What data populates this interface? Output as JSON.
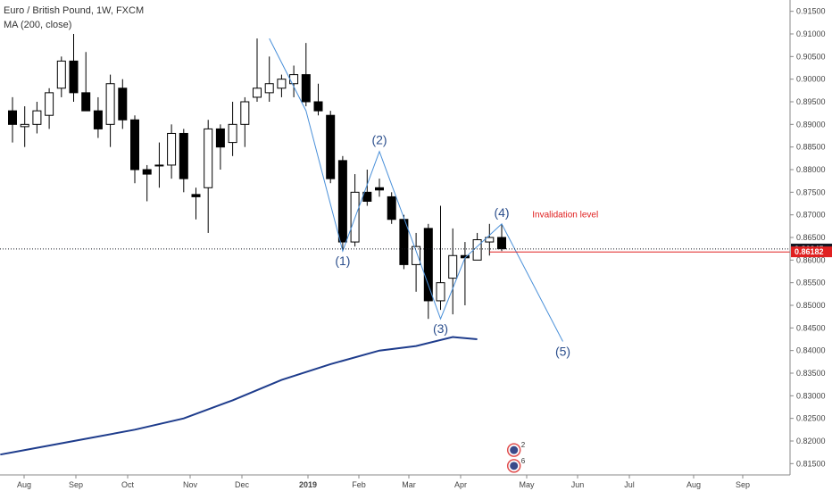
{
  "legend": {
    "title": "Euro / British Pound, 1W, FXCM",
    "indicator": "MA (200, close)"
  },
  "annotation": {
    "text": "Invalidation level"
  },
  "price_tags": [
    {
      "label": "0.86245",
      "value": 0.86245,
      "color": "#131722"
    },
    {
      "label": "0.86182",
      "value": 0.86182,
      "color": "#e02020"
    }
  ],
  "chart_data": {
    "type": "candlestick",
    "y_ticks": [
      "0.91500",
      "0.91000",
      "0.90500",
      "0.90000",
      "0.89500",
      "0.89000",
      "0.88500",
      "0.88000",
      "0.87500",
      "0.87000",
      "0.86500",
      "0.86000",
      "0.85500",
      "0.85000",
      "0.84500",
      "0.84000",
      "0.83500",
      "0.83000",
      "0.82500",
      "0.82000",
      "0.81500"
    ],
    "ylim": [
      0.8125,
      0.9175
    ],
    "x_ticks": [
      "Aug",
      "Sep",
      "Oct",
      "Nov",
      "Dec",
      "2019",
      "Feb",
      "Mar",
      "Apr",
      "May",
      "Jun",
      "Jul",
      "Aug",
      "Sep"
    ],
    "candles": [
      {
        "o": 0.893,
        "h": 0.896,
        "l": 0.886,
        "c": 0.89
      },
      {
        "o": 0.8895,
        "h": 0.894,
        "l": 0.885,
        "c": 0.89
      },
      {
        "o": 0.89,
        "h": 0.895,
        "l": 0.888,
        "c": 0.893
      },
      {
        "o": 0.892,
        "h": 0.898,
        "l": 0.889,
        "c": 0.897
      },
      {
        "o": 0.898,
        "h": 0.905,
        "l": 0.896,
        "c": 0.904
      },
      {
        "o": 0.904,
        "h": 0.91,
        "l": 0.895,
        "c": 0.897
      },
      {
        "o": 0.897,
        "h": 0.906,
        "l": 0.893,
        "c": 0.893
      },
      {
        "o": 0.893,
        "h": 0.896,
        "l": 0.887,
        "c": 0.889
      },
      {
        "o": 0.89,
        "h": 0.901,
        "l": 0.885,
        "c": 0.899
      },
      {
        "o": 0.898,
        "h": 0.9,
        "l": 0.889,
        "c": 0.891
      },
      {
        "o": 0.891,
        "h": 0.892,
        "l": 0.877,
        "c": 0.88
      },
      {
        "o": 0.88,
        "h": 0.881,
        "l": 0.873,
        "c": 0.879
      },
      {
        "o": 0.881,
        "h": 0.886,
        "l": 0.876,
        "c": 0.881
      },
      {
        "o": 0.881,
        "h": 0.89,
        "l": 0.878,
        "c": 0.888
      },
      {
        "o": 0.888,
        "h": 0.889,
        "l": 0.875,
        "c": 0.878
      },
      {
        "o": 0.8745,
        "h": 0.876,
        "l": 0.869,
        "c": 0.874
      },
      {
        "o": 0.876,
        "h": 0.891,
        "l": 0.866,
        "c": 0.889
      },
      {
        "o": 0.889,
        "h": 0.89,
        "l": 0.88,
        "c": 0.885
      },
      {
        "o": 0.886,
        "h": 0.895,
        "l": 0.883,
        "c": 0.89
      },
      {
        "o": 0.89,
        "h": 0.896,
        "l": 0.885,
        "c": 0.895
      },
      {
        "o": 0.896,
        "h": 0.909,
        "l": 0.895,
        "c": 0.898
      },
      {
        "o": 0.897,
        "h": 0.905,
        "l": 0.895,
        "c": 0.899
      },
      {
        "o": 0.898,
        "h": 0.901,
        "l": 0.896,
        "c": 0.9
      },
      {
        "o": 0.899,
        "h": 0.903,
        "l": 0.896,
        "c": 0.901
      },
      {
        "o": 0.901,
        "h": 0.908,
        "l": 0.894,
        "c": 0.895
      },
      {
        "o": 0.895,
        "h": 0.899,
        "l": 0.892,
        "c": 0.893
      },
      {
        "o": 0.892,
        "h": 0.893,
        "l": 0.877,
        "c": 0.878
      },
      {
        "o": 0.882,
        "h": 0.883,
        "l": 0.862,
        "c": 0.864
      },
      {
        "o": 0.864,
        "h": 0.879,
        "l": 0.863,
        "c": 0.875
      },
      {
        "o": 0.875,
        "h": 0.88,
        "l": 0.872,
        "c": 0.873
      },
      {
        "o": 0.876,
        "h": 0.878,
        "l": 0.874,
        "c": 0.8755
      },
      {
        "o": 0.874,
        "h": 0.875,
        "l": 0.868,
        "c": 0.869
      },
      {
        "o": 0.869,
        "h": 0.87,
        "l": 0.858,
        "c": 0.859
      },
      {
        "o": 0.859,
        "h": 0.866,
        "l": 0.853,
        "c": 0.863
      },
      {
        "o": 0.867,
        "h": 0.868,
        "l": 0.847,
        "c": 0.851
      },
      {
        "o": 0.851,
        "h": 0.872,
        "l": 0.849,
        "c": 0.855
      },
      {
        "o": 0.856,
        "h": 0.867,
        "l": 0.848,
        "c": 0.861
      },
      {
        "o": 0.861,
        "h": 0.864,
        "l": 0.85,
        "c": 0.8605
      },
      {
        "o": 0.86,
        "h": 0.866,
        "l": 0.86,
        "c": 0.8645
      },
      {
        "o": 0.864,
        "h": 0.868,
        "l": 0.861,
        "c": 0.865
      },
      {
        "o": 0.865,
        "h": 0.868,
        "l": 0.862,
        "c": 0.8625
      }
    ],
    "series": [
      {
        "name": "MA (200, close)",
        "color": "#1e3c8c",
        "points": [
          [
            -1,
            0.817
          ],
          [
            2,
            0.8185
          ],
          [
            6,
            0.8205
          ],
          [
            10,
            0.8225
          ],
          [
            14,
            0.825
          ],
          [
            18,
            0.829
          ],
          [
            22,
            0.8335
          ],
          [
            26,
            0.837
          ],
          [
            30,
            0.84
          ],
          [
            33,
            0.841
          ],
          [
            36,
            0.843
          ],
          [
            38,
            0.8425
          ]
        ]
      }
    ],
    "wave": {
      "color": "#4a90d9",
      "points": [
        [
          21,
          0.909
        ],
        [
          24,
          0.893
        ],
        [
          27,
          0.862
        ],
        [
          30,
          0.884
        ],
        [
          33,
          0.862
        ],
        [
          35,
          0.847
        ],
        [
          37,
          0.8605
        ],
        [
          40,
          0.868
        ],
        [
          45,
          0.842
        ]
      ],
      "labels": [
        {
          "text": "(1)",
          "x": 27,
          "y": 0.862,
          "dy": 16
        },
        {
          "text": "(2)",
          "x": 30,
          "y": 0.884,
          "dy": -8
        },
        {
          "text": "(3)",
          "x": 35,
          "y": 0.847,
          "dy": 16
        },
        {
          "text": "(4)",
          "x": 40,
          "y": 0.868,
          "dy": -8
        },
        {
          "text": "(5)",
          "x": 45,
          "y": 0.842,
          "dy": 16
        }
      ]
    },
    "invalidation_level": 0.8618,
    "current_price": 0.86245,
    "grid": false,
    "events": [
      {
        "label": "2",
        "x": 41,
        "y": 0.818
      },
      {
        "label": "6",
        "x": 41,
        "y": 0.8145
      }
    ]
  }
}
